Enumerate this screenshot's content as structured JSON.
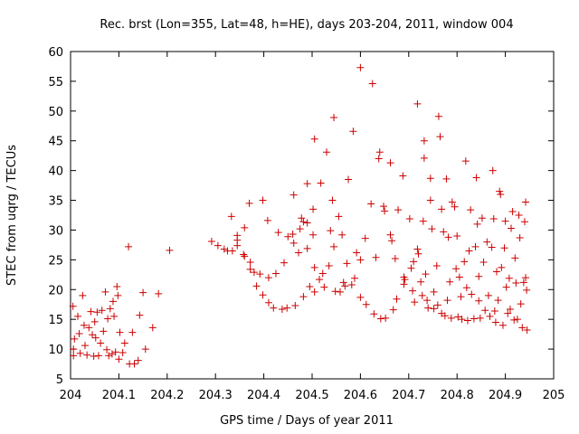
{
  "chart_data": {
    "type": "scatter",
    "title": "Rec. brst (Lon=355, Lat=48, h=HE), days 203-204, 2011, window 004",
    "xlabel": "GPS time / Days of year 2011",
    "ylabel": "STEC from uqrg / TECUs",
    "xlim": [
      204,
      205
    ],
    "ylim": [
      5,
      60
    ],
    "xticks": [
      "204",
      "204.1",
      "204.2",
      "204.3",
      "204.4",
      "204.5",
      "204.6",
      "204.7",
      "204.8",
      "204.9",
      "205"
    ],
    "yticks": [
      "5",
      "10",
      "15",
      "20",
      "25",
      "30",
      "35",
      "40",
      "45",
      "50",
      "55",
      "60"
    ],
    "grid": false,
    "legend": "none",
    "marker": "+",
    "marker_color": "#cc0000",
    "points": [
      [
        204.005,
        17.2
      ],
      [
        204.008,
        11.7
      ],
      [
        204.006,
        10.0
      ],
      [
        204.006,
        8.9
      ],
      [
        204.015,
        15.5
      ],
      [
        204.018,
        12.6
      ],
      [
        204.02,
        9.3
      ],
      [
        204.025,
        19.0
      ],
      [
        204.028,
        14.0
      ],
      [
        204.03,
        10.6
      ],
      [
        204.034,
        9.0
      ],
      [
        204.038,
        13.6
      ],
      [
        204.042,
        16.3
      ],
      [
        204.045,
        12.4
      ],
      [
        204.048,
        8.8
      ],
      [
        204.05,
        14.6
      ],
      [
        204.052,
        11.9
      ],
      [
        204.055,
        16.2
      ],
      [
        204.058,
        8.9
      ],
      [
        204.062,
        11.0
      ],
      [
        204.065,
        16.5
      ],
      [
        204.068,
        13.0
      ],
      [
        204.072,
        19.6
      ],
      [
        204.075,
        9.9
      ],
      [
        204.077,
        15.1
      ],
      [
        204.079,
        8.9
      ],
      [
        204.082,
        16.8
      ],
      [
        204.086,
        9.2
      ],
      [
        204.088,
        18.0
      ],
      [
        204.09,
        15.5
      ],
      [
        204.093,
        9.5
      ],
      [
        204.096,
        20.5
      ],
      [
        204.098,
        19.0
      ],
      [
        204.1,
        8.3
      ],
      [
        204.102,
        12.8
      ],
      [
        204.108,
        9.4
      ],
      [
        204.112,
        11.0
      ],
      [
        204.12,
        27.2
      ],
      [
        204.122,
        7.5
      ],
      [
        204.128,
        12.8
      ],
      [
        204.132,
        7.5
      ],
      [
        204.14,
        8.1
      ],
      [
        204.143,
        15.7
      ],
      [
        204.15,
        19.5
      ],
      [
        204.155,
        10.0
      ],
      [
        204.17,
        13.6
      ],
      [
        204.182,
        19.3
      ],
      [
        204.205,
        26.6
      ],
      [
        204.292,
        28.1
      ],
      [
        204.305,
        27.4
      ],
      [
        204.318,
        26.8
      ],
      [
        204.325,
        26.5
      ],
      [
        204.333,
        32.3
      ],
      [
        204.335,
        26.5
      ],
      [
        204.345,
        28.3
      ],
      [
        204.345,
        29.1
      ],
      [
        204.345,
        27.4
      ],
      [
        204.358,
        25.9
      ],
      [
        204.36,
        30.4
      ],
      [
        204.36,
        25.6
      ],
      [
        204.37,
        34.5
      ],
      [
        204.372,
        23.4
      ],
      [
        204.372,
        24.6
      ],
      [
        204.38,
        22.9
      ],
      [
        204.385,
        20.6
      ],
      [
        204.392,
        22.6
      ],
      [
        204.398,
        35.0
      ],
      [
        204.398,
        19.1
      ],
      [
        204.408,
        31.6
      ],
      [
        204.41,
        17.8
      ],
      [
        204.41,
        22.0
      ],
      [
        204.42,
        16.9
      ],
      [
        204.425,
        22.7
      ],
      [
        204.43,
        29.6
      ],
      [
        204.438,
        16.7
      ],
      [
        204.442,
        24.5
      ],
      [
        204.448,
        16.9
      ],
      [
        204.45,
        28.9
      ],
      [
        204.46,
        29.3
      ],
      [
        204.462,
        35.9
      ],
      [
        204.462,
        27.8
      ],
      [
        204.465,
        17.3
      ],
      [
        204.472,
        26.2
      ],
      [
        204.475,
        30.2
      ],
      [
        204.478,
        32.0
      ],
      [
        204.482,
        18.8
      ],
      [
        204.482,
        31.4
      ],
      [
        204.49,
        37.8
      ],
      [
        204.49,
        31.2
      ],
      [
        204.49,
        26.9
      ],
      [
        204.495,
        20.5
      ],
      [
        204.502,
        33.5
      ],
      [
        204.502,
        29.2
      ],
      [
        204.505,
        45.3
      ],
      [
        204.505,
        23.7
      ],
      [
        204.505,
        19.6
      ],
      [
        204.515,
        21.7
      ],
      [
        204.518,
        37.9
      ],
      [
        204.522,
        22.7
      ],
      [
        204.525,
        20.4
      ],
      [
        204.53,
        43.1
      ],
      [
        204.535,
        24.0
      ],
      [
        204.538,
        29.9
      ],
      [
        204.542,
        35.0
      ],
      [
        204.545,
        48.9
      ],
      [
        204.545,
        27.2
      ],
      [
        204.548,
        19.7
      ],
      [
        204.555,
        32.3
      ],
      [
        204.558,
        19.6
      ],
      [
        204.562,
        29.2
      ],
      [
        204.565,
        21.2
      ],
      [
        204.568,
        20.6
      ],
      [
        204.572,
        24.4
      ],
      [
        204.575,
        38.5
      ],
      [
        204.582,
        20.8
      ],
      [
        204.585,
        46.6
      ],
      [
        204.588,
        21.9
      ],
      [
        204.592,
        26.2
      ],
      [
        204.6,
        57.3
      ],
      [
        204.6,
        18.7
      ],
      [
        204.6,
        25.0
      ],
      [
        204.61,
        28.6
      ],
      [
        204.612,
        17.5
      ],
      [
        204.622,
        34.4
      ],
      [
        204.625,
        54.6
      ],
      [
        204.628,
        15.9
      ],
      [
        204.632,
        25.4
      ],
      [
        204.638,
        42.0
      ],
      [
        204.64,
        43.1
      ],
      [
        204.642,
        15.1
      ],
      [
        204.648,
        34.0
      ],
      [
        204.65,
        33.2
      ],
      [
        204.652,
        15.2
      ],
      [
        204.662,
        29.2
      ],
      [
        204.662,
        41.3
      ],
      [
        204.665,
        28.2
      ],
      [
        204.668,
        16.6
      ],
      [
        204.672,
        25.2
      ],
      [
        204.675,
        18.4
      ],
      [
        204.678,
        33.4
      ],
      [
        204.688,
        39.1
      ],
      [
        204.69,
        22.1
      ],
      [
        204.692,
        21.7
      ],
      [
        204.69,
        20.9
      ],
      [
        204.702,
        31.9
      ],
      [
        204.705,
        23.6
      ],
      [
        204.708,
        19.8
      ],
      [
        204.71,
        24.7
      ],
      [
        204.712,
        17.9
      ],
      [
        204.718,
        51.2
      ],
      [
        204.718,
        26.8
      ],
      [
        204.72,
        26.0
      ],
      [
        204.725,
        21.3
      ],
      [
        204.728,
        19.0
      ],
      [
        204.73,
        31.5
      ],
      [
        204.732,
        45.0
      ],
      [
        204.732,
        42.1
      ],
      [
        204.735,
        22.6
      ],
      [
        204.738,
        18.2
      ],
      [
        204.74,
        16.9
      ],
      [
        204.745,
        35.0
      ],
      [
        204.745,
        38.7
      ],
      [
        204.748,
        30.2
      ],
      [
        204.752,
        16.8
      ],
      [
        204.752,
        19.6
      ],
      [
        204.758,
        24.0
      ],
      [
        204.76,
        17.4
      ],
      [
        204.762,
        49.1
      ],
      [
        204.765,
        45.7
      ],
      [
        204.768,
        33.5
      ],
      [
        204.768,
        16.0
      ],
      [
        204.772,
        29.7
      ],
      [
        204.775,
        15.6
      ],
      [
        204.778,
        38.6
      ],
      [
        204.78,
        18.2
      ],
      [
        204.782,
        28.8
      ],
      [
        204.785,
        21.3
      ],
      [
        204.788,
        15.2
      ],
      [
        204.79,
        34.7
      ],
      [
        204.795,
        33.9
      ],
      [
        204.798,
        23.5
      ],
      [
        204.8,
        29.0
      ],
      [
        204.802,
        15.4
      ],
      [
        204.805,
        22.1
      ],
      [
        204.808,
        18.8
      ],
      [
        204.81,
        15.0
      ],
      [
        204.815,
        24.7
      ],
      [
        204.818,
        41.6
      ],
      [
        204.82,
        20.3
      ],
      [
        204.822,
        14.8
      ],
      [
        204.825,
        26.5
      ],
      [
        204.828,
        33.4
      ],
      [
        204.83,
        19.2
      ],
      [
        204.835,
        15.1
      ],
      [
        204.838,
        27.2
      ],
      [
        204.84,
        38.8
      ],
      [
        204.842,
        31.0
      ],
      [
        204.845,
        18.1
      ],
      [
        204.845,
        22.2
      ],
      [
        204.848,
        15.2
      ],
      [
        204.852,
        32.0
      ],
      [
        204.855,
        24.6
      ],
      [
        204.858,
        16.5
      ],
      [
        204.862,
        28.0
      ],
      [
        204.865,
        19.0
      ],
      [
        204.868,
        15.5
      ],
      [
        204.872,
        27.1
      ],
      [
        204.874,
        40.0
      ],
      [
        204.876,
        31.9
      ],
      [
        204.878,
        16.4
      ],
      [
        204.88,
        14.5
      ],
      [
        204.882,
        23.0
      ],
      [
        204.885,
        18.2
      ],
      [
        204.888,
        36.5
      ],
      [
        204.89,
        36.0
      ],
      [
        204.892,
        23.7
      ],
      [
        204.895,
        14.0
      ],
      [
        204.898,
        27.0
      ],
      [
        204.9,
        31.5
      ],
      [
        204.902,
        20.4
      ],
      [
        204.905,
        16.0
      ],
      [
        204.908,
        21.9
      ],
      [
        204.91,
        16.7
      ],
      [
        204.912,
        30.3
      ],
      [
        204.915,
        33.1
      ],
      [
        204.918,
        14.9
      ],
      [
        204.92,
        25.3
      ],
      [
        204.922,
        21.1
      ],
      [
        204.925,
        15.0
      ],
      [
        204.928,
        32.5
      ],
      [
        204.93,
        28.7
      ],
      [
        204.932,
        17.6
      ],
      [
        204.935,
        13.6
      ],
      [
        204.938,
        21.2
      ],
      [
        204.94,
        31.4
      ],
      [
        204.942,
        34.7
      ],
      [
        204.942,
        22.0
      ],
      [
        204.944,
        19.9
      ],
      [
        204.945,
        13.2
      ]
    ]
  }
}
